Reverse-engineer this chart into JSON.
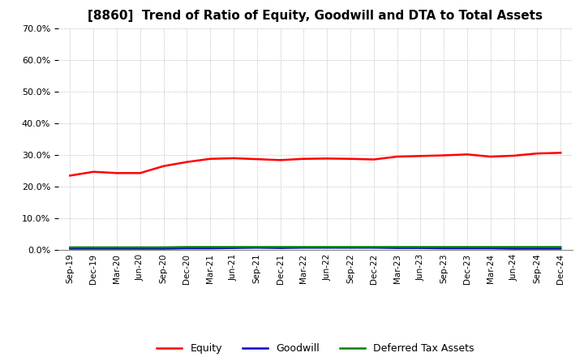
{
  "title": "[8860]  Trend of Ratio of Equity, Goodwill and DTA to Total Assets",
  "ylim": [
    0.0,
    0.7
  ],
  "yticks": [
    0.0,
    0.1,
    0.2,
    0.3,
    0.4,
    0.5,
    0.6,
    0.7
  ],
  "x_labels": [
    "Sep-19",
    "Dec-19",
    "Mar-20",
    "Jun-20",
    "Sep-20",
    "Dec-20",
    "Mar-21",
    "Jun-21",
    "Sep-21",
    "Dec-21",
    "Mar-22",
    "Jun-22",
    "Sep-22",
    "Dec-22",
    "Mar-23",
    "Jun-23",
    "Sep-23",
    "Dec-23",
    "Mar-24",
    "Jun-24",
    "Sep-24",
    "Dec-24"
  ],
  "equity": [
    0.235,
    0.247,
    0.243,
    0.243,
    0.265,
    0.278,
    0.288,
    0.29,
    0.287,
    0.284,
    0.288,
    0.289,
    0.288,
    0.286,
    0.295,
    0.297,
    0.299,
    0.302,
    0.295,
    0.298,
    0.305,
    0.307
  ],
  "goodwill": [
    0.004,
    0.004,
    0.004,
    0.004,
    0.004,
    0.005,
    0.005,
    0.006,
    0.007,
    0.006,
    0.007,
    0.007,
    0.007,
    0.007,
    0.006,
    0.006,
    0.005,
    0.005,
    0.005,
    0.004,
    0.004,
    0.004
  ],
  "dta": [
    0.008,
    0.008,
    0.008,
    0.008,
    0.008,
    0.009,
    0.009,
    0.009,
    0.009,
    0.009,
    0.009,
    0.009,
    0.009,
    0.009,
    0.009,
    0.009,
    0.009,
    0.009,
    0.009,
    0.009,
    0.009,
    0.009
  ],
  "equity_color": "#ff0000",
  "goodwill_color": "#0000cc",
  "dta_color": "#008000",
  "background_color": "#ffffff",
  "grid_color": "#aaaaaa",
  "title_fontsize": 11,
  "legend_labels": [
    "Equity",
    "Goodwill",
    "Deferred Tax Assets"
  ]
}
